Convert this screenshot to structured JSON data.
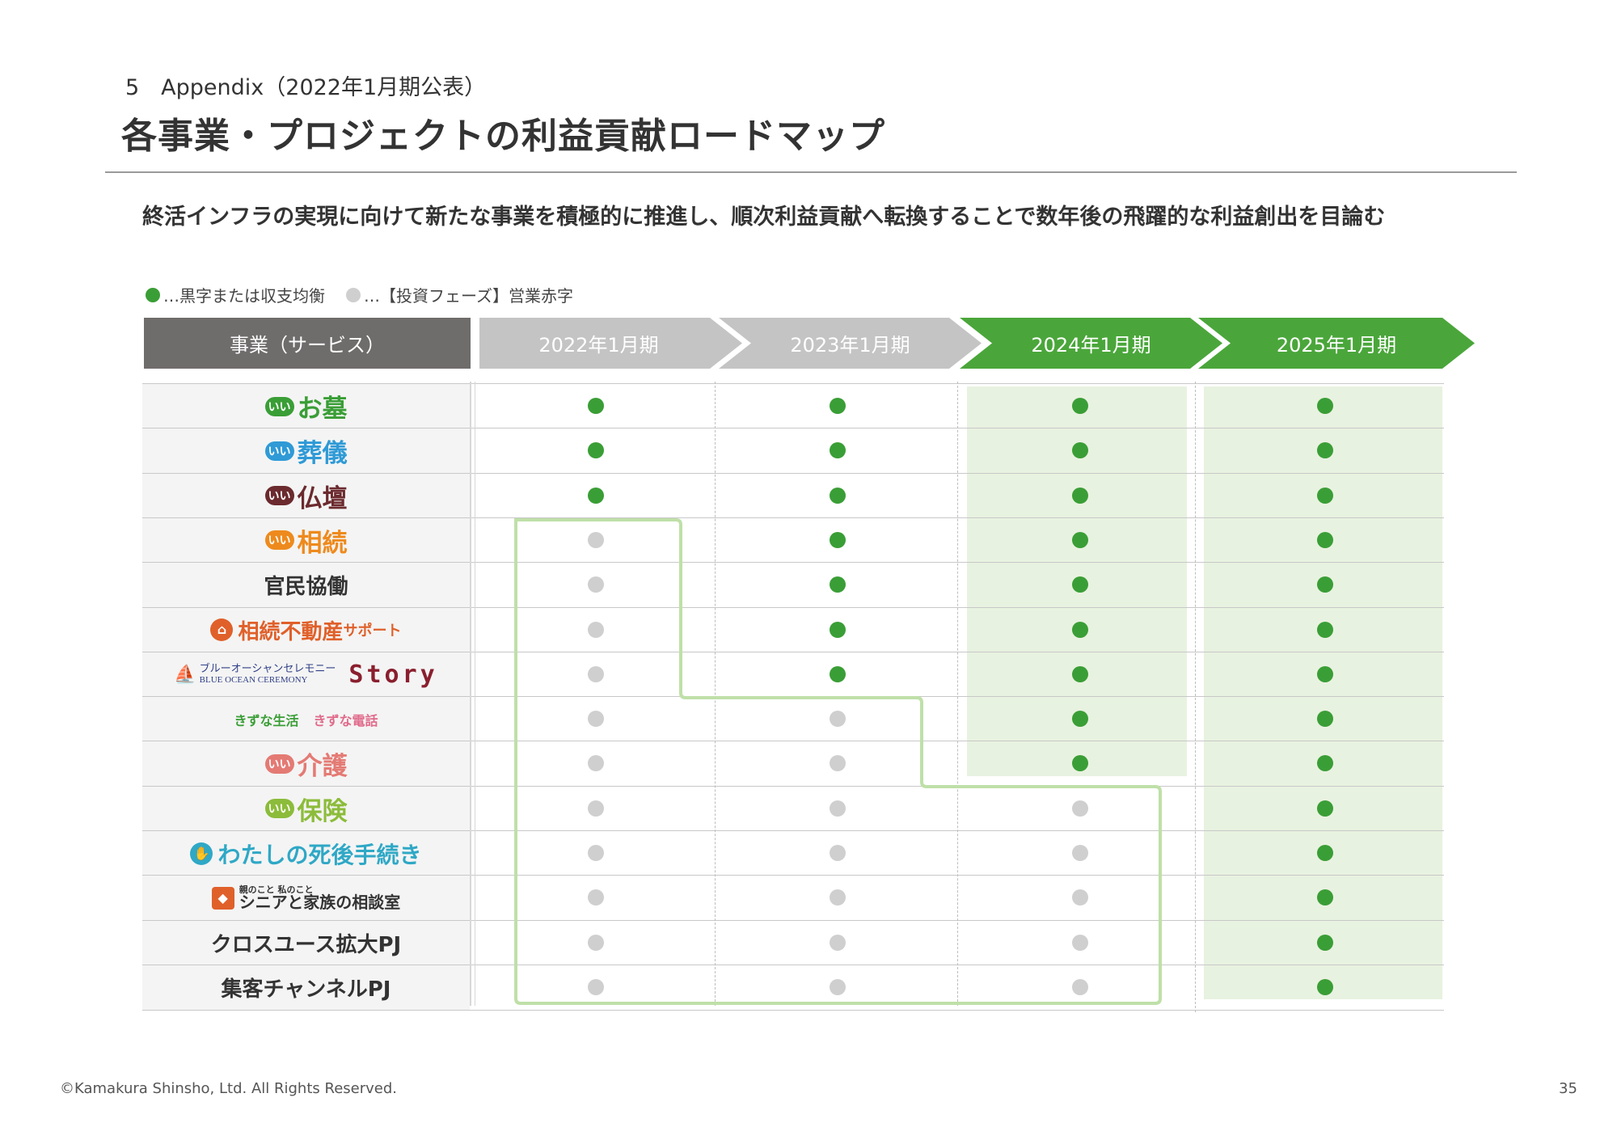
{
  "header": {
    "section": "5　Appendix（2022年1月期公表）",
    "title": "各事業・プロジェクトの利益貢献ロードマップ",
    "subtitle": "終活インフラの実現に向けて新たな事業を積極的に推進し、順次利益貢献へ転換することで数年後の飛躍的な利益創出を目論む"
  },
  "legend": {
    "green_label": "…黒字または収支均衡",
    "grey_label": "…【投資フェーズ】営業赤字"
  },
  "table": {
    "service_header": "事業（サービス）",
    "periods": [
      "2022年1月期",
      "2023年1月期",
      "2024年1月期",
      "2025年1月期"
    ],
    "rows": [
      {
        "name": "お墓",
        "status": [
          "profit",
          "profit",
          "profit",
          "profit"
        ]
      },
      {
        "name": "葬儀",
        "status": [
          "profit",
          "profit",
          "profit",
          "profit"
        ]
      },
      {
        "name": "仏壇",
        "status": [
          "profit",
          "profit",
          "profit",
          "profit"
        ]
      },
      {
        "name": "相続",
        "status": [
          "loss",
          "profit",
          "profit",
          "profit"
        ]
      },
      {
        "name": "官民協働",
        "status": [
          "loss",
          "profit",
          "profit",
          "profit"
        ]
      },
      {
        "name": "相続不動産",
        "suffix": "サポート",
        "status": [
          "loss",
          "profit",
          "profit",
          "profit"
        ]
      },
      {
        "name": "ブルーオーシャンセレモニー",
        "name_en": "BLUE OCEAN CEREMONY",
        "name_story": "Story",
        "status": [
          "loss",
          "profit",
          "profit",
          "profit"
        ]
      },
      {
        "name": "きずな生活",
        "name2": "きずな電話",
        "status": [
          "loss",
          "loss",
          "profit",
          "profit"
        ]
      },
      {
        "name": "介護",
        "status": [
          "loss",
          "loss",
          "profit",
          "profit"
        ]
      },
      {
        "name": "保険",
        "status": [
          "loss",
          "loss",
          "loss",
          "profit"
        ]
      },
      {
        "name": "わたしの死後手続き",
        "status": [
          "loss",
          "loss",
          "loss",
          "profit"
        ]
      },
      {
        "name_small": "親のこと 私のこと",
        "name": "シニアと家族の相談室",
        "status": [
          "loss",
          "loss",
          "loss",
          "profit"
        ]
      },
      {
        "name": "クロスユース拡大PJ",
        "status": [
          "loss",
          "loss",
          "loss",
          "profit"
        ]
      },
      {
        "name": "集客チャンネルPJ",
        "status": [
          "loss",
          "loss",
          "loss",
          "profit"
        ]
      }
    ]
  },
  "logo_prefix": "いい",
  "colors": {
    "profit": "#3a9e36",
    "loss": "#cfcfcf",
    "phase_green": "#4aa63a",
    "phase_grey": "#c4c4c4",
    "highlight": "#e8f2e0",
    "outline": "#bfe0a8"
  },
  "footer": {
    "copyright": "©Kamakura Shinsho, Ltd. All Rights Reserved.",
    "page": "35"
  }
}
